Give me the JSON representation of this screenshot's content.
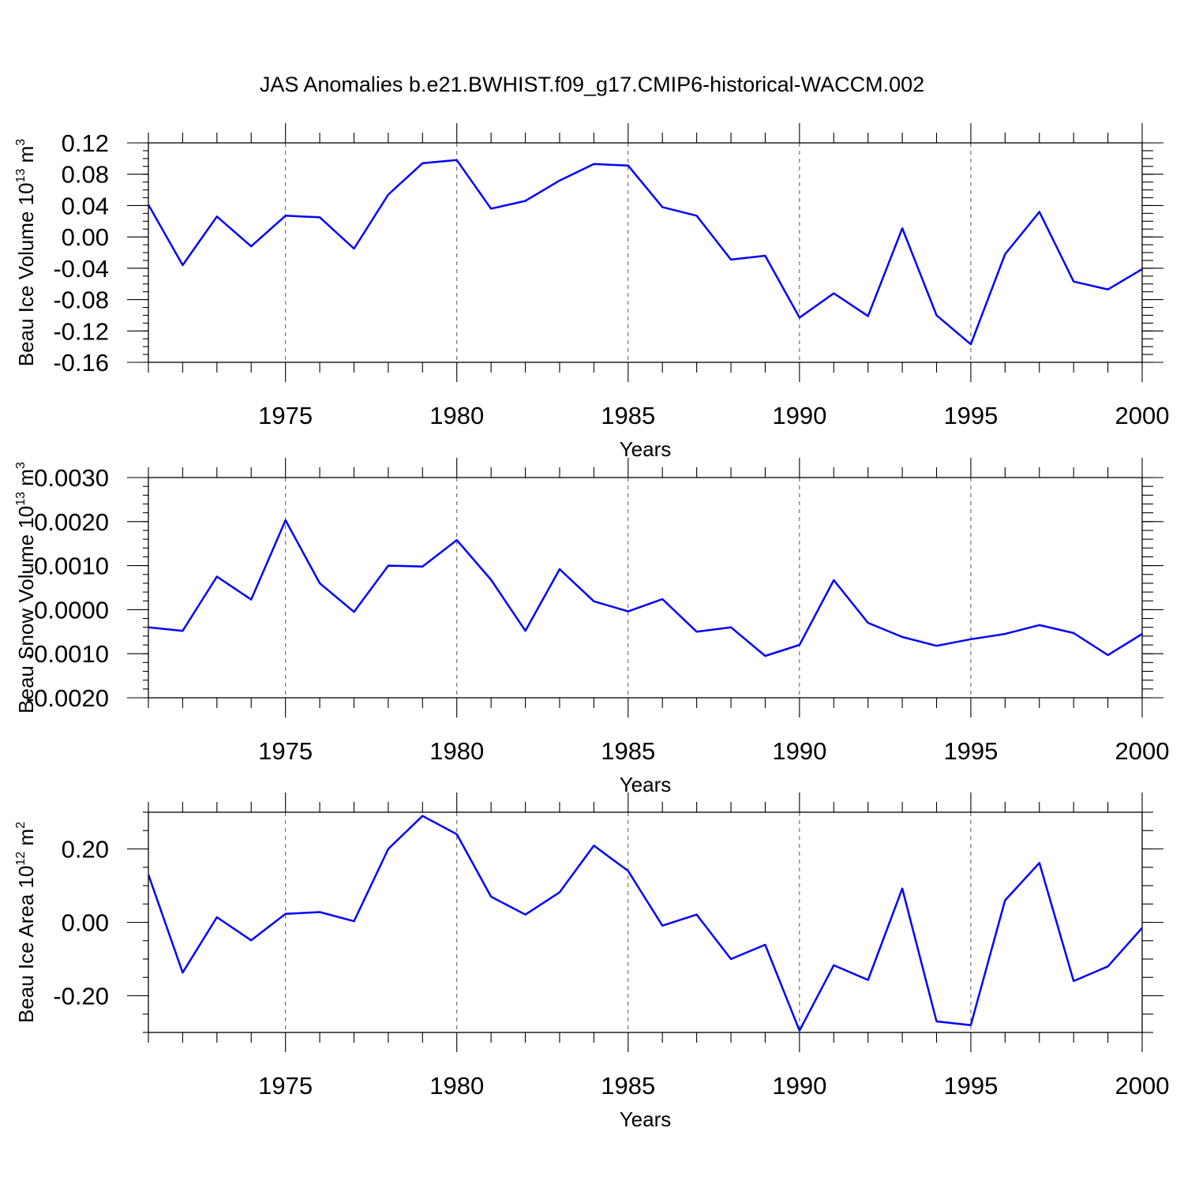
{
  "title": "JAS Anomalies b.e21.BWHIST.f09_g17.CMIP6-historical-WACCM.002",
  "colors": {
    "line": "#0000ff",
    "frame": "#000000",
    "grid": "#555555"
  },
  "chart_data": [
    {
      "type": "line",
      "ylabel": "Beau Ice Volume 10",
      "ylabel_exp": "13",
      "ylabel_unit": " m",
      "ylabel_unit_exp": "3",
      "xlabel": "Years",
      "xlim": [
        1971,
        2000
      ],
      "ylim": [
        -0.16,
        0.12
      ],
      "yticks": [
        0.12,
        0.08,
        0.04,
        0.0,
        -0.04,
        -0.08,
        -0.12,
        -0.16
      ],
      "yticklabels": [
        "0.12",
        "0.08",
        "0.04",
        "0.00",
        "-0.04",
        "-0.08",
        "-0.12",
        "-0.16"
      ],
      "yminor": 0.01,
      "xticks": [
        1975,
        1980,
        1985,
        1990,
        1995,
        2000
      ],
      "xticklabels": [
        "1975",
        "1980",
        "1985",
        "1990",
        "1995",
        "2000"
      ],
      "grid_x": [
        1975,
        1980,
        1985,
        1990,
        1995
      ],
      "x": [
        1971,
        1972,
        1973,
        1974,
        1975,
        1976,
        1977,
        1978,
        1979,
        1980,
        1981,
        1982,
        1983,
        1984,
        1985,
        1986,
        1987,
        1988,
        1989,
        1990,
        1991,
        1992,
        1993,
        1994,
        1995,
        1996,
        1997,
        1998,
        1999,
        2000
      ],
      "values": [
        0.041,
        -0.036,
        0.026,
        -0.012,
        0.027,
        0.025,
        -0.015,
        0.054,
        0.094,
        0.098,
        0.036,
        0.046,
        0.072,
        0.093,
        0.091,
        0.038,
        0.027,
        -0.029,
        -0.024,
        -0.103,
        -0.072,
        -0.101,
        0.011,
        -0.1,
        -0.137,
        -0.022,
        0.032,
        -0.057,
        -0.067,
        -0.041
      ]
    },
    {
      "type": "line",
      "ylabel": "Beau Snow Volume 10",
      "ylabel_exp": "13",
      "ylabel_unit": " m",
      "ylabel_unit_exp": "3",
      "xlabel": "Years",
      "xlim": [
        1971,
        2000
      ],
      "ylim": [
        -0.002,
        0.003
      ],
      "yticks": [
        0.003,
        0.002,
        0.001,
        0.0,
        -0.001,
        -0.002
      ],
      "yticklabels": [
        "0.0030",
        "0.0020",
        "0.0010",
        "0.0000",
        "-0.0010",
        "-0.0020"
      ],
      "yminor": 0.0002,
      "xticks": [
        1975,
        1980,
        1985,
        1990,
        1995,
        2000
      ],
      "xticklabels": [
        "1975",
        "1980",
        "1985",
        "1990",
        "1995",
        "2000"
      ],
      "grid_x": [
        1975,
        1980,
        1985,
        1990,
        1995
      ],
      "x": [
        1971,
        1972,
        1973,
        1974,
        1975,
        1976,
        1977,
        1978,
        1979,
        1980,
        1981,
        1982,
        1983,
        1984,
        1985,
        1986,
        1987,
        1988,
        1989,
        1990,
        1991,
        1992,
        1993,
        1994,
        1995,
        1996,
        1997,
        1998,
        1999,
        2000
      ],
      "values": [
        -0.0004,
        -0.00048,
        0.00075,
        0.00023,
        0.00203,
        0.0006,
        -5e-05,
        0.001,
        0.00098,
        0.00158,
        0.00068,
        -0.00048,
        0.00092,
        0.00019,
        -4e-05,
        0.00024,
        -0.0005,
        -0.0004,
        -0.00105,
        -0.0008,
        0.00067,
        -0.0003,
        -0.00062,
        -0.00082,
        -0.00067,
        -0.00055,
        -0.00035,
        -0.00053,
        -0.00103,
        -0.00055
      ]
    },
    {
      "type": "line",
      "ylabel": "Beau Ice Area 10",
      "ylabel_exp": "12",
      "ylabel_unit": " m",
      "ylabel_unit_exp": "2",
      "xlabel": "Years",
      "xlim": [
        1971,
        2000
      ],
      "ylim": [
        -0.3,
        0.3
      ],
      "yticks": [
        0.2,
        0.0,
        -0.2
      ],
      "yticklabels": [
        "0.20",
        "0.00",
        "-0.20"
      ],
      "yminor": 0.05,
      "xticks": [
        1975,
        1980,
        1985,
        1990,
        1995,
        2000
      ],
      "xticklabels": [
        "1975",
        "1980",
        "1985",
        "1990",
        "1995",
        "2000"
      ],
      "grid_x": [
        1975,
        1980,
        1985,
        1990,
        1995
      ],
      "x": [
        1971,
        1972,
        1973,
        1974,
        1975,
        1976,
        1977,
        1978,
        1979,
        1980,
        1981,
        1982,
        1983,
        1984,
        1985,
        1986,
        1987,
        1988,
        1989,
        1990,
        1991,
        1992,
        1993,
        1994,
        1995,
        1996,
        1997,
        1998,
        1999,
        2000
      ],
      "values": [
        0.13,
        -0.137,
        0.014,
        -0.049,
        0.023,
        0.028,
        0.003,
        0.2,
        0.29,
        0.24,
        0.07,
        0.021,
        0.082,
        0.209,
        0.14,
        -0.009,
        0.021,
        -0.1,
        -0.061,
        -0.295,
        -0.117,
        -0.157,
        0.092,
        -0.27,
        -0.28,
        0.06,
        0.162,
        -0.16,
        -0.12,
        -0.015
      ]
    }
  ]
}
